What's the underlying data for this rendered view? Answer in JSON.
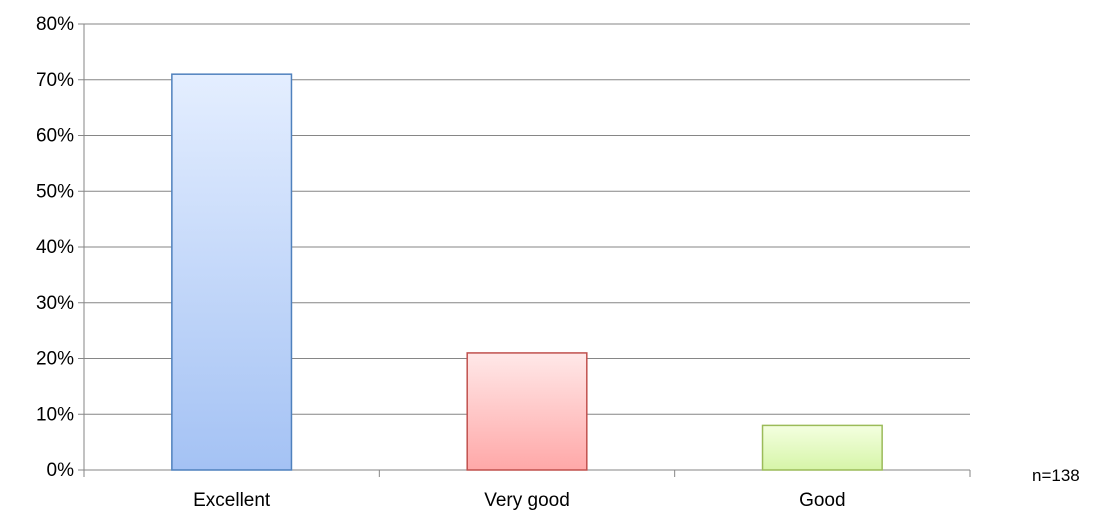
{
  "chart_data": {
    "type": "bar",
    "categories": [
      "Excellent",
      "Very good",
      "Good"
    ],
    "values": [
      71,
      21,
      8
    ],
    "title": "",
    "xlabel": "",
    "ylabel": "",
    "ylim": [
      0,
      80
    ],
    "ytick_step": 10,
    "ytick_suffix": "%",
    "grid": true,
    "legend": "none",
    "series_colors": [
      {
        "top": "#e4eeff",
        "bottom": "#a4c2f4",
        "stroke": "#4f81bd"
      },
      {
        "top": "#ffe8e8",
        "bottom": "#ffa8a8",
        "stroke": "#c0504d"
      },
      {
        "top": "#f4ffe0",
        "bottom": "#d6f5a8",
        "stroke": "#9bbb59"
      }
    ],
    "grid_color": "#868686"
  },
  "annotation": {
    "sample_size": "n=138"
  }
}
